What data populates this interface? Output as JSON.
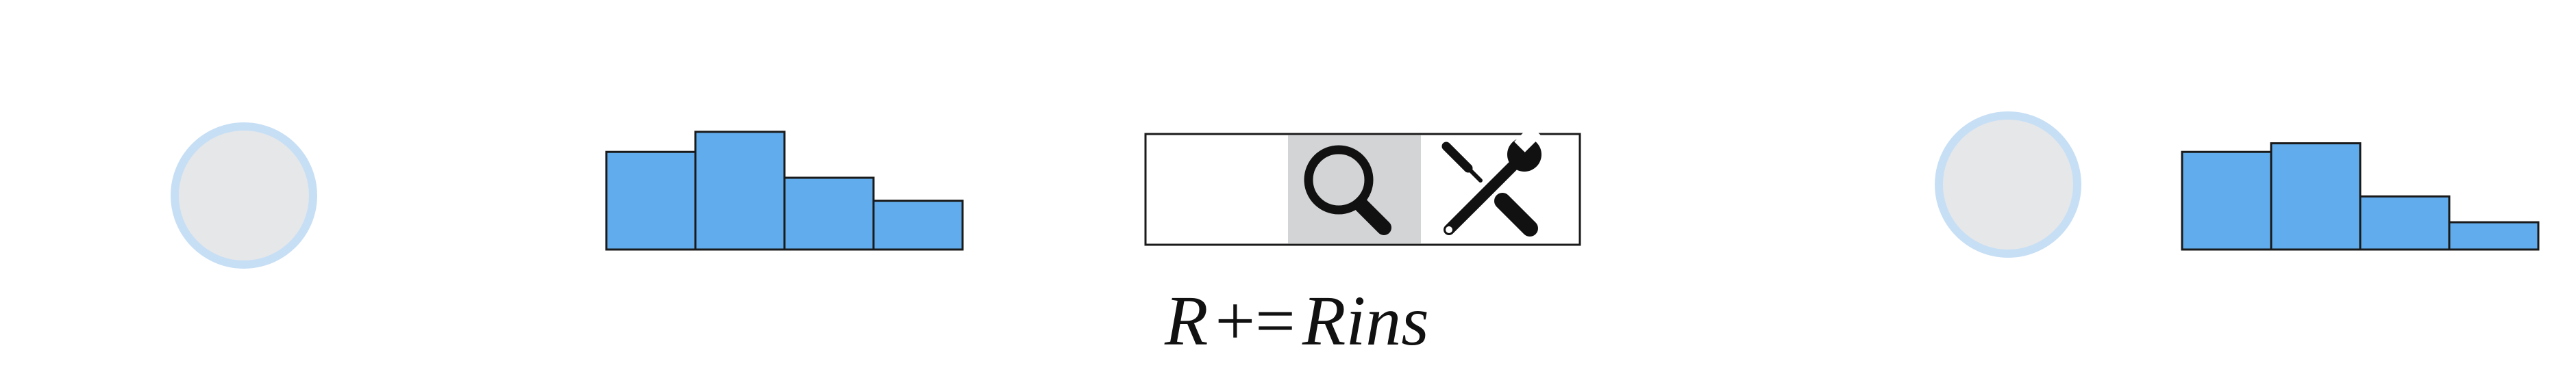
{
  "diagram": {
    "formula": {
      "lhs": "R",
      "operator": "+=",
      "rhs_main": "R",
      "rhs_sub": "ins"
    },
    "colors": {
      "circle_fill": "#e6e7e9",
      "circle_ring": "#c7dff5",
      "bar_fill": "#60acec",
      "bar_stroke": "#1a1a1a",
      "toolbar_border": "#1a1a1a",
      "toolbar_highlight": "#d3d4d6",
      "icon_color": "#111111"
    },
    "icons": [
      "search-icon",
      "tools-icon"
    ],
    "histogram_left": {
      "values": [
        0.68,
        0.82,
        0.5,
        0.34
      ]
    },
    "histogram_right": {
      "values": [
        0.68,
        0.74,
        0.37,
        0.19
      ]
    },
    "toolbar": {
      "active_segment": "search"
    }
  }
}
